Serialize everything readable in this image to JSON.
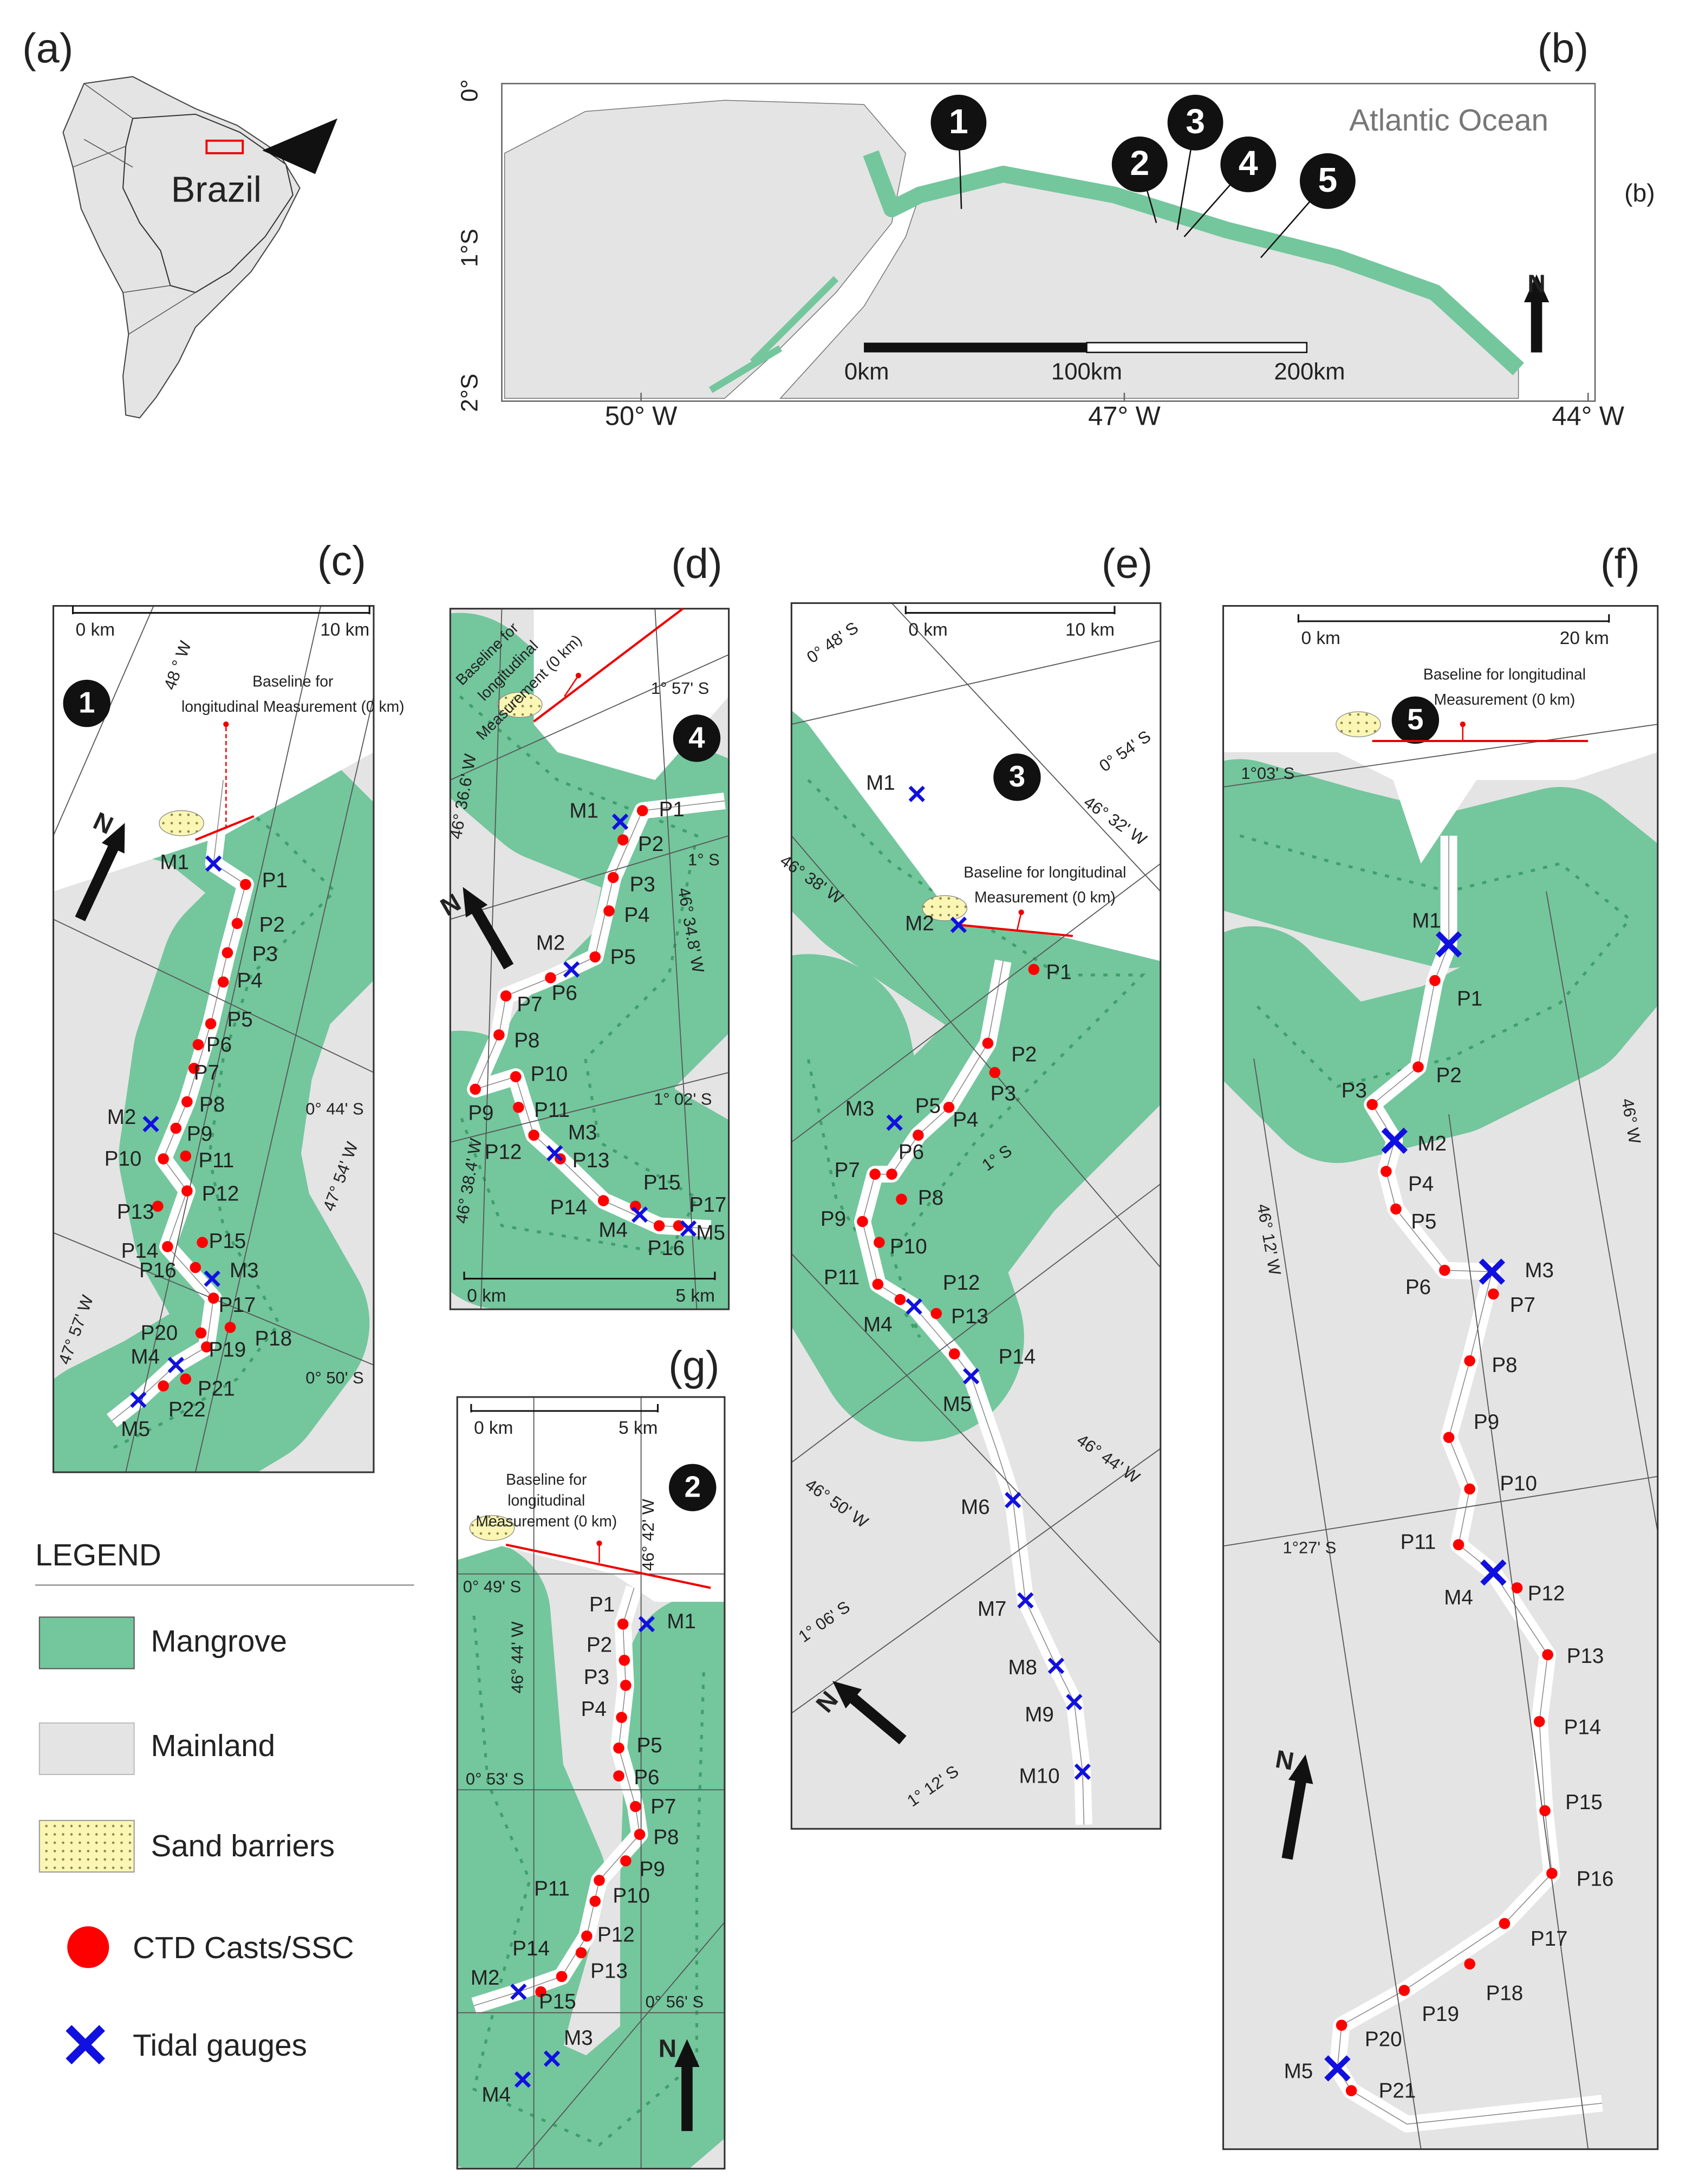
{
  "panels": {
    "a": {
      "label": "(a)",
      "country": "Brazil"
    },
    "b": {
      "label": "(b)",
      "side_label": "(b)",
      "ocean": "Atlantic Ocean",
      "sites": [
        "1",
        "2",
        "3",
        "4",
        "5"
      ],
      "lat_labels": [
        "0°",
        "1°S",
        "2°S"
      ],
      "lon_labels": [
        "50° W",
        "47° W",
        "44° W"
      ],
      "scale": [
        "0km",
        "100km",
        "200km"
      ],
      "north": "N"
    },
    "c": {
      "label": "(c)",
      "site": "1",
      "scale": [
        "0 km",
        "10 km"
      ],
      "baseline": [
        "Baseline for",
        "longitudinal Measurement (0 km)"
      ],
      "grid_labels": [
        "48 ° W",
        "0° 44' S",
        "47° 54' W",
        "47° 57' W",
        "0° 50' S"
      ],
      "north": "N",
      "points": [
        "P1",
        "P2",
        "P3",
        "P4",
        "P5",
        "P6",
        "P7",
        "P8",
        "P9",
        "P10",
        "P11",
        "P12",
        "P13",
        "P14",
        "P15",
        "P16",
        "P17",
        "P18",
        "P19",
        "P20",
        "P21",
        "P22"
      ],
      "gauges": [
        "M1",
        "M2",
        "M3",
        "M4",
        "M5"
      ]
    },
    "d": {
      "label": "(d)",
      "site": "4",
      "scale": [
        "0 km",
        "5 km"
      ],
      "baseline": [
        "Baseline for",
        "longitudinal",
        "Measurement (0 km)"
      ],
      "grid_labels": [
        "1° 57' S",
        "46° 36.6' W",
        "1° S",
        "46° 34.8' W",
        "1° 02' S",
        "46° 38.4' W"
      ],
      "north": "N",
      "points": [
        "P1",
        "P2",
        "P3",
        "P4",
        "P5",
        "P6",
        "P7",
        "P8",
        "P9",
        "P10",
        "P11",
        "P12",
        "P13",
        "P14",
        "P15",
        "P16",
        "P17"
      ],
      "gauges": [
        "M1",
        "M2",
        "M3",
        "M4",
        "M5"
      ]
    },
    "e": {
      "label": "(e)",
      "site": "3",
      "scale": [
        "0 km",
        "10 km"
      ],
      "baseline": [
        "Baseline for longitudinal",
        "Measurement (0 km)"
      ],
      "grid_labels": [
        "0° 48' S",
        "0° 54' S",
        "46° 32' W",
        "46° 38' W",
        "1° S",
        "46° 44' W",
        "46° 50' W",
        "1° 06' S",
        "1° 12' S"
      ],
      "north": "N",
      "points": [
        "P1",
        "P2",
        "P3",
        "P4",
        "P5",
        "P6",
        "P7",
        "P8",
        "P9",
        "P10",
        "P11",
        "P12",
        "P13",
        "P14"
      ],
      "gauges": [
        "M1",
        "M2",
        "M3",
        "M4",
        "M5",
        "M6",
        "M7",
        "M8",
        "M9",
        "M10"
      ]
    },
    "f": {
      "label": "(f)",
      "site": "5",
      "scale": [
        "0 km",
        "20 km"
      ],
      "baseline": [
        "Baseline for longitudinal",
        "Measurement (0 km)"
      ],
      "grid_labels": [
        "1°03' S",
        "46° W",
        "46° 12' W",
        "1°27' S"
      ],
      "north": "N",
      "points": [
        "P1",
        "P2",
        "P3",
        "P4",
        "P5",
        "P6",
        "P7",
        "P8",
        "P9",
        "P10",
        "P11",
        "P12",
        "P13",
        "P14",
        "P15",
        "P16",
        "P17",
        "P18",
        "P19",
        "P20",
        "P21"
      ],
      "gauges": [
        "M1",
        "M2",
        "M3",
        "M4",
        "M5"
      ]
    },
    "g": {
      "label": "(g)",
      "site": "2",
      "scale": [
        "0 km",
        "5 km"
      ],
      "baseline": [
        "Baseline for",
        "longitudinal",
        "Measurement (0 km)"
      ],
      "grid_labels": [
        "46° 42' W",
        "0° 49' S",
        "46° 44' W",
        "0° 53' S",
        "0° 56' S"
      ],
      "north": "N",
      "points": [
        "P1",
        "P2",
        "P3",
        "P4",
        "P5",
        "P6",
        "P7",
        "P8",
        "P9",
        "P10",
        "P11",
        "P12",
        "P13",
        "P14",
        "P15"
      ],
      "gauges": [
        "M1",
        "M2",
        "M3",
        "M4"
      ]
    }
  },
  "legend": {
    "title": "LEGEND",
    "items": [
      "Mangrove",
      "Mainland",
      "Sand barriers",
      "CTD Casts/SSC",
      "Tidal gauges"
    ]
  }
}
